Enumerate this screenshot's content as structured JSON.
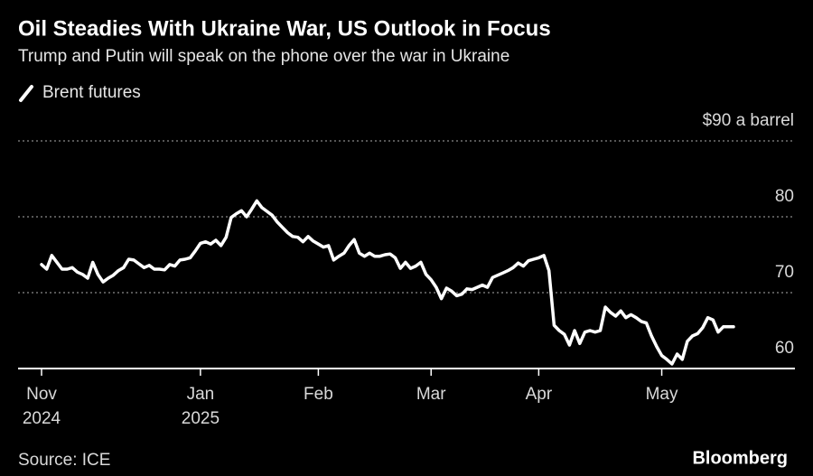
{
  "chart_data": {
    "type": "line",
    "title": "Oil Steadies With Ukraine War, US Outlook in Focus",
    "subtitle": "Trump and Putin will speak on the phone over the war in Ukraine",
    "source": "Source: ICE",
    "brand": "Bloomberg",
    "categories": [
      "Nov",
      null,
      null,
      null,
      null,
      null,
      null,
      null,
      null,
      null,
      null,
      null,
      null,
      null,
      null,
      null,
      null,
      null,
      null,
      null,
      null,
      null,
      null,
      null,
      null,
      null,
      null,
      null,
      null,
      null,
      null,
      "Jan",
      null,
      null,
      null,
      null,
      null,
      null,
      null,
      null,
      null,
      null,
      null,
      null,
      null,
      null,
      null,
      null,
      null,
      null,
      null,
      null,
      null,
      null,
      "Feb",
      null,
      null,
      null,
      null,
      null,
      null,
      null,
      null,
      null,
      null,
      null,
      null,
      null,
      null,
      null,
      null,
      null,
      null,
      null,
      null,
      null,
      "Mar",
      null,
      null,
      null,
      null,
      null,
      null,
      null,
      null,
      null,
      null,
      null,
      null,
      null,
      null,
      null,
      null,
      null,
      null,
      null,
      null,
      "Apr",
      null,
      null,
      null,
      null,
      null,
      null,
      null,
      null,
      null,
      null,
      null,
      null,
      null,
      null,
      null,
      null,
      null,
      null,
      null,
      null,
      null,
      null,
      null,
      "May",
      null,
      null,
      null,
      null,
      null,
      null,
      null,
      null,
      null,
      null,
      null,
      null,
      null,
      null
    ],
    "year_labels": [
      {
        "category": 0,
        "label": "2024"
      },
      {
        "category": 31,
        "label": "2025"
      }
    ],
    "series": [
      {
        "name": "Brent futures",
        "color": "#ffffff",
        "values": [
          73.7,
          73.1,
          74.9,
          74.0,
          73.1,
          73.1,
          73.3,
          72.7,
          72.4,
          71.9,
          74.0,
          72.4,
          71.4,
          71.9,
          72.3,
          72.9,
          73.3,
          74.4,
          74.3,
          73.8,
          73.3,
          73.6,
          73.1,
          73.1,
          73.0,
          73.7,
          73.5,
          74.3,
          74.4,
          74.6,
          75.5,
          76.5,
          76.7,
          76.4,
          76.9,
          76.2,
          77.3,
          79.9,
          80.4,
          80.8,
          80.0,
          81.0,
          82.1,
          81.2,
          80.7,
          80.2,
          79.3,
          78.6,
          77.9,
          77.4,
          77.3,
          76.7,
          77.4,
          76.8,
          76.4,
          76.0,
          76.2,
          74.3,
          74.8,
          75.2,
          76.2,
          77.0,
          75.2,
          74.8,
          75.2,
          74.8,
          74.8,
          75.0,
          75.1,
          74.6,
          73.2,
          74.0,
          73.2,
          73.5,
          74.0,
          72.4,
          71.7,
          70.7,
          69.2,
          70.6,
          70.2,
          69.6,
          69.8,
          70.5,
          70.4,
          70.7,
          71.0,
          70.7,
          72.0,
          72.3,
          72.6,
          72.9,
          73.3,
          73.9,
          73.5,
          74.2,
          74.4,
          74.6,
          74.9,
          72.9,
          65.7,
          65.0,
          64.5,
          63.1,
          65.0,
          63.3,
          64.8,
          65.0,
          64.8,
          65.0,
          68.1,
          67.4,
          66.9,
          67.6,
          66.7,
          67.1,
          66.7,
          66.2,
          66.0,
          64.3,
          62.9,
          61.7,
          61.2,
          60.6,
          61.9,
          61.2,
          63.6,
          64.3,
          64.6,
          65.4,
          66.7,
          66.4,
          64.8,
          65.5,
          65.5,
          65.5
        ]
      }
    ],
    "ylim": [
      60,
      90
    ],
    "yticks": [
      60,
      70,
      80,
      {
        "value": 90,
        "label": "$90 a barrel"
      }
    ],
    "grid": true
  }
}
